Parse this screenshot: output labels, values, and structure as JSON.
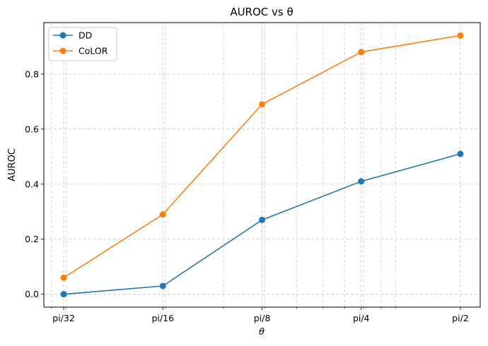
{
  "chart_data": {
    "type": "line",
    "title": "AUROC vs θ",
    "xlabel": "θ",
    "ylabel": "AUROC",
    "x_scale": "log2",
    "x": [
      0.09817477,
      0.19634954,
      0.39269908,
      0.78539816,
      1.57079633
    ],
    "categories": [
      "pi/32",
      "pi/16",
      "pi/8",
      "pi/4",
      "pi/2"
    ],
    "ylim": [
      -0.047,
      0.987
    ],
    "yticks": [
      0.0,
      0.2,
      0.4,
      0.6,
      0.8
    ],
    "ytick_labels": [
      "0.0",
      "0.2",
      "0.4",
      "0.6",
      "0.8"
    ],
    "grid": true,
    "legend_position": "top-left",
    "series": [
      {
        "name": "DD",
        "color": "#1f77b4",
        "values": [
          0.0,
          0.03,
          0.27,
          0.41,
          0.51
        ]
      },
      {
        "name": "CoLOR",
        "color": "#ff7f0e",
        "values": [
          0.06,
          0.29,
          0.69,
          0.88,
          0.94
        ]
      }
    ]
  }
}
